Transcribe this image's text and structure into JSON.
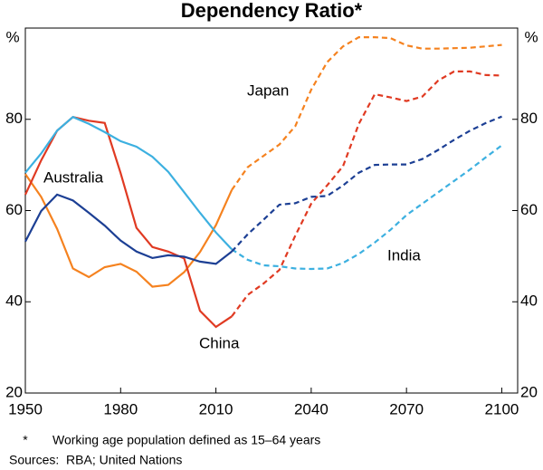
{
  "chart_data": {
    "type": "line",
    "title": "Dependency Ratio*",
    "y_unit": "%",
    "x": [
      1950,
      1955,
      1960,
      1965,
      1970,
      1975,
      1980,
      1985,
      1990,
      1995,
      2000,
      2005,
      2010,
      2015,
      2020,
      2025,
      2030,
      2035,
      2040,
      2045,
      2050,
      2055,
      2060,
      2065,
      2070,
      2075,
      2080,
      2085,
      2090,
      2095,
      2100
    ],
    "projected_from": 2015,
    "series": [
      {
        "name": "Japan",
        "color": "#f5821f",
        "values": [
          68,
          63,
          56,
          47.3,
          45.4,
          47.6,
          48.3,
          46.6,
          43.3,
          43.7,
          46.5,
          50.9,
          56.8,
          64.5,
          69.5,
          72,
          74.5,
          78.5,
          86.5,
          92.5,
          96,
          98,
          98,
          97.8,
          96.2,
          95.5,
          95.5,
          95.6,
          95.7,
          96,
          96.3
        ]
      },
      {
        "name": "China",
        "color": "#e03a22",
        "values": [
          63.5,
          71,
          77.5,
          80.5,
          79.7,
          79.2,
          68.2,
          56.2,
          52,
          51,
          49.5,
          38,
          34.5,
          36.8,
          41.5,
          44,
          47,
          54.5,
          61.5,
          65.5,
          69.7,
          79,
          85.5,
          84.8,
          84,
          85,
          88.5,
          90.5,
          90.5,
          89.7,
          89.6
        ]
      },
      {
        "name": "India",
        "color": "#3cb0e0",
        "values": [
          68.3,
          72.5,
          77.5,
          80.5,
          79,
          77.2,
          75.2,
          74,
          71.8,
          68.5,
          64,
          59.5,
          55.2,
          51.5,
          49.2,
          48,
          47.8,
          47.3,
          47.2,
          47.3,
          48.5,
          50.5,
          53,
          55.8,
          59,
          61.5,
          64,
          66.5,
          69,
          71.7,
          74.3
        ]
      },
      {
        "name": "Australia",
        "color": "#1c3f94",
        "values": [
          53.2,
          59.9,
          63.5,
          62.2,
          59.5,
          56.7,
          53.4,
          51,
          49.6,
          50.2,
          49.9,
          48.8,
          48.3,
          51,
          54.8,
          58,
          61.3,
          61.6,
          63,
          63.2,
          65.5,
          68.3,
          70,
          70.1,
          70.1,
          71.3,
          73.3,
          75.5,
          77.5,
          79.2,
          80.6
        ]
      }
    ],
    "xlim": [
      1950,
      2105
    ],
    "xticks": [
      1950,
      1980,
      2010,
      2040,
      2070,
      2100
    ],
    "ylim": [
      20,
      100
    ],
    "yticks": [
      20,
      40,
      60,
      80
    ],
    "grid": false,
    "footnote_marker": "*",
    "footnote": "Working age population defined as 15–64 years",
    "source": "Sources:  RBA; United Nations"
  }
}
